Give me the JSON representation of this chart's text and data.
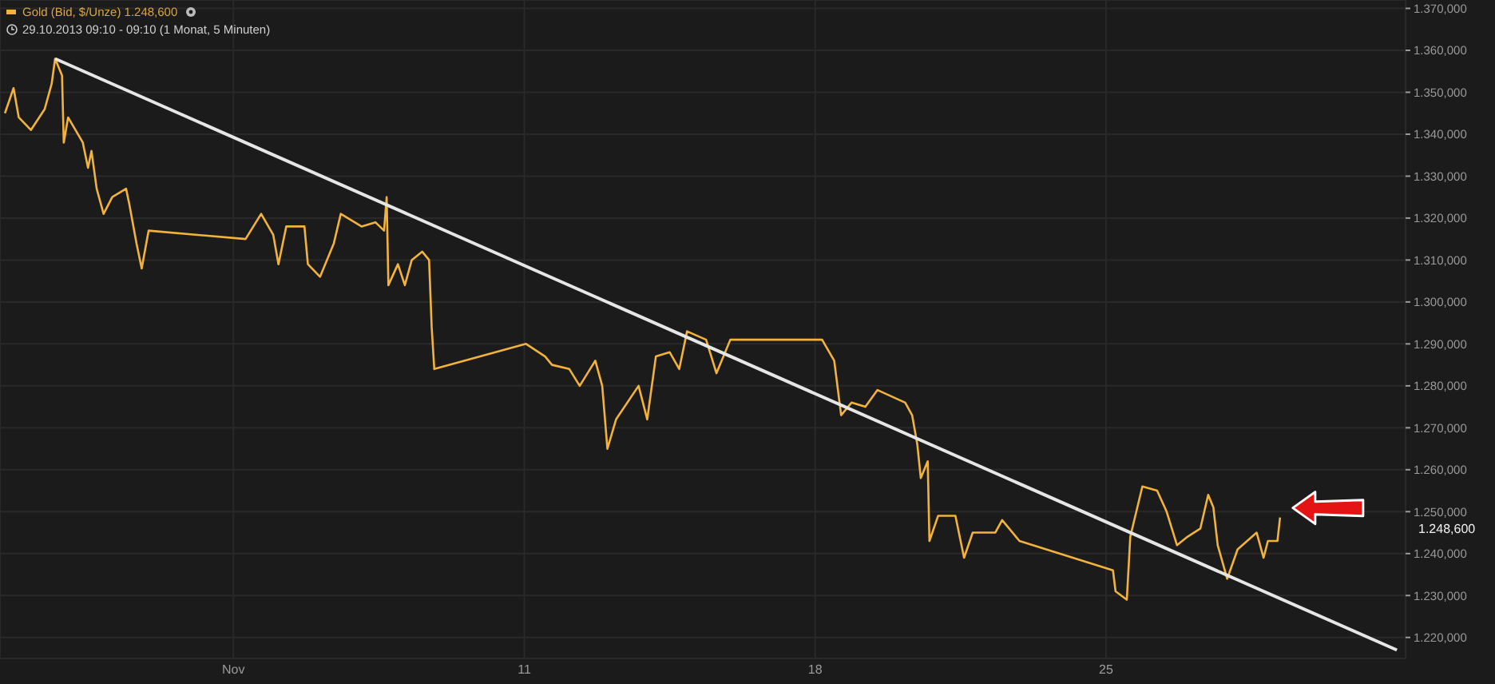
{
  "chart_data": {
    "type": "line",
    "title": "Gold (Bid, $/Unze)  1.248,600",
    "subtitle": "29.10.2013 09:10 - 09:10 (1 Monat, 5 Minuten)",
    "xlim": [
      "2013-10-29T09:10",
      "2013-12-02T05:00"
    ],
    "xticks": [
      {
        "value": "2013-11-04",
        "label": "Nov"
      },
      {
        "value": "2013-11-11",
        "label": "11"
      },
      {
        "value": "2013-11-18",
        "label": "18"
      },
      {
        "value": "2013-11-25",
        "label": "25"
      }
    ],
    "ylim": [
      1215,
      1372
    ],
    "yticks": [
      {
        "value": 1220,
        "label": "1.220,000"
      },
      {
        "value": 1230,
        "label": "1.230,000"
      },
      {
        "value": 1240,
        "label": "1.240,000"
      },
      {
        "value": 1250,
        "label": "1.250,000"
      },
      {
        "value": 1260,
        "label": "1.260,000"
      },
      {
        "value": 1270,
        "label": "1.270,000"
      },
      {
        "value": 1280,
        "label": "1.280,000"
      },
      {
        "value": 1290,
        "label": "1.290,000"
      },
      {
        "value": 1300,
        "label": "1.300,000"
      },
      {
        "value": 1310,
        "label": "1.310,000"
      },
      {
        "value": 1320,
        "label": "1.320,000"
      },
      {
        "value": 1330,
        "label": "1.330,000"
      },
      {
        "value": 1340,
        "label": "1.340,000"
      },
      {
        "value": 1350,
        "label": "1.350,000"
      },
      {
        "value": 1360,
        "label": "1.360,000"
      },
      {
        "value": 1370,
        "label": "1.370,000"
      }
    ],
    "grid": true,
    "marker": "none",
    "line_style": "solid",
    "series": [
      {
        "color": "#f2b33d",
        "x": [
          "2013-10-29T12:00",
          "2013-10-29T17:00",
          "2013-10-29T20:00",
          "2013-10-30T03:00",
          "2013-10-30T11:00",
          "2013-10-30T15:00",
          "2013-10-30T17:00",
          "2013-10-30T21:00",
          "2013-10-30T22:00",
          "2013-10-31T00:30",
          "2013-10-31T09:00",
          "2013-10-31T12:00",
          "2013-10-31T14:00",
          "2013-10-31T17:00",
          "2013-10-31T21:00",
          "2013-11-01T02:00",
          "2013-11-01T10:00",
          "2013-11-01T12:00",
          "2013-11-01T16:00",
          "2013-11-01T19:00",
          "2013-11-01T23:00",
          "2013-11-04T07:00",
          "2013-11-04T16:00",
          "2013-11-04T23:00",
          "2013-11-05T02:00",
          "2013-11-05T06:30",
          "2013-11-05T17:00",
          "2013-11-05T19:00",
          "2013-11-06T02:00",
          "2013-11-06T10:00",
          "2013-11-06T14:00",
          "2013-11-07T02:00",
          "2013-11-07T10:00",
          "2013-11-07T15:00",
          "2013-11-07T16:30",
          "2013-11-07T17:30",
          "2013-11-07T23:00",
          "2013-11-08T03:00",
          "2013-11-08T07:00",
          "2013-11-08T13:00",
          "2013-11-08T17:00",
          "2013-11-08T18:30",
          "2013-11-08T20:00",
          "2013-11-11T01:00",
          "2013-11-11T12:00",
          "2013-11-11T16:00",
          "2013-11-12T02:00",
          "2013-11-12T08:00",
          "2013-11-12T17:00",
          "2013-11-12T21:00",
          "2013-11-13T00:00",
          "2013-11-13T05:00",
          "2013-11-13T18:00",
          "2013-11-13T23:00",
          "2013-11-14T04:00",
          "2013-11-14T12:00",
          "2013-11-14T17:30",
          "2013-11-14T22:00",
          "2013-11-15T09:00",
          "2013-11-15T15:00",
          "2013-11-15T23:00",
          "2013-11-18T04:00",
          "2013-11-18T11:00",
          "2013-11-18T15:00",
          "2013-11-18T21:00",
          "2013-11-19T05:00",
          "2013-11-19T12:00",
          "2013-11-20T04:00",
          "2013-11-20T08:00",
          "2013-11-20T11:00",
          "2013-11-20T13:00",
          "2013-11-20T17:00",
          "2013-11-20T18:00",
          "2013-11-20T23:00",
          "2013-11-21T09:00",
          "2013-11-21T14:00",
          "2013-11-21T19:00",
          "2013-11-22T08:00",
          "2013-11-22T12:00",
          "2013-11-22T22:00",
          "2013-11-25T04:00",
          "2013-11-25T05:30",
          "2013-11-25T12:00",
          "2013-11-25T14:00",
          "2013-11-25T21:00",
          "2013-11-26T05:30",
          "2013-11-26T11:00",
          "2013-11-26T17:00",
          "2013-11-26T23:00",
          "2013-11-27T06:30",
          "2013-11-27T11:00",
          "2013-11-27T14:00",
          "2013-11-27T16:30",
          "2013-11-27T22:00",
          "2013-11-28T04:00",
          "2013-11-28T15:00",
          "2013-11-28T19:00",
          "2013-11-28T21:30",
          "2013-11-29T03:00",
          "2013-11-29T04:30"
        ],
        "values": [
          1345,
          1351,
          1344,
          1341,
          1346,
          1352,
          1358,
          1354,
          1338,
          1344,
          1338,
          1332,
          1336,
          1327,
          1321,
          1325,
          1327,
          1323,
          1314,
          1308,
          1317,
          1315,
          1321,
          1316,
          1309,
          1318,
          1318,
          1309,
          1306,
          1314,
          1321,
          1318,
          1319,
          1317,
          1325,
          1304,
          1309,
          1304,
          1310,
          1312,
          1310,
          1294,
          1284,
          1290,
          1287,
          1285,
          1284,
          1280,
          1286,
          1280,
          1265,
          1272,
          1280,
          1272,
          1287,
          1288,
          1284,
          1293,
          1291,
          1283,
          1291,
          1291,
          1286,
          1273,
          1276,
          1275,
          1279,
          1276,
          1273,
          1266,
          1258,
          1262,
          1243,
          1249,
          1249,
          1239,
          1245,
          1245,
          1248,
          1243,
          1236,
          1231,
          1229,
          1244,
          1256,
          1255,
          1250,
          1242,
          1244,
          1246,
          1254,
          1251,
          1242,
          1234,
          1241,
          1245,
          1239,
          1243,
          1243,
          1248.6
        ]
      },
      {
        "color": "#e6e6e6",
        "x": [
          "2013-10-30T17:00",
          "2013-12-02T00:00"
        ],
        "values": [
          1358,
          1217
        ]
      }
    ],
    "annotations": [
      "1.248,600"
    ]
  }
}
